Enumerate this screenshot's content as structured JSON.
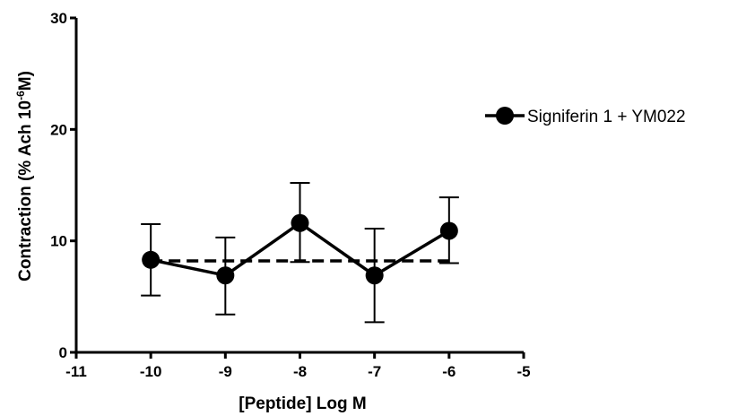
{
  "chart_data": {
    "type": "line",
    "title": "",
    "xlabel": "[Peptide] Log M",
    "ylabel": {
      "prefix": "Contraction (% Ach 10",
      "superscript": "-6",
      "suffix": "M)"
    },
    "xlim": [
      -11,
      -5
    ],
    "ylim": [
      0,
      30
    ],
    "x_ticks": [
      -11,
      -10,
      -9,
      -8,
      -7,
      -6,
      -5
    ],
    "x_tick_labels": [
      "-11",
      "-10",
      "-9",
      "-8",
      "-7",
      "-6",
      "-5"
    ],
    "y_ticks": [
      0,
      10,
      20,
      30
    ],
    "y_tick_labels": [
      "0",
      "10",
      "20",
      "30"
    ],
    "grid": false,
    "legend_position": "right",
    "series": [
      {
        "name": "Signiferin 1 + YM022",
        "x": [
          -10,
          -9,
          -8,
          -7,
          -6
        ],
        "y": [
          8.3,
          6.9,
          11.6,
          6.9,
          10.9
        ],
        "error_upper": [
          11.5,
          10.3,
          15.2,
          11.1,
          13.9
        ],
        "error_lower": [
          5.1,
          3.4,
          8.1,
          2.7,
          8.0
        ],
        "color": "#000000",
        "marker": "circle"
      }
    ],
    "reference_line": {
      "style": "dashed",
      "x": [
        -10,
        -6
      ],
      "y": [
        8.2,
        8.2
      ],
      "color": "#000000"
    }
  }
}
